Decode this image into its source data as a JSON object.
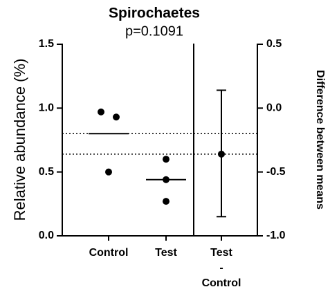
{
  "chart_data": {
    "type": "estimation",
    "title": "Spirochaetes",
    "subtitle": "p=0.1091",
    "ylabel": "Relative abundance (%)",
    "y2label": "Difference between means",
    "categories": [
      "Control",
      "Test",
      "Test - Control"
    ],
    "series": [
      {
        "values": [
          0.97,
          0.93,
          0.5
        ],
        "mean": 0.8
      },
      {
        "values": [
          0.6,
          0.44,
          0.27
        ],
        "mean": 0.44
      }
    ],
    "difference": {
      "value": -0.36,
      "ci": [
        -0.85,
        0.14
      ],
      "axis": "y2"
    },
    "color": "#000000",
    "ylim": [
      0,
      1.5
    ],
    "yticks": [
      {
        "value": 0,
        "label": "0.0"
      },
      0.5,
      {
        "value": 1,
        "label": "1.0"
      },
      1.5
    ],
    "y2lim": [
      -1,
      0.5
    ],
    "y2ticks": [
      {
        "value": -1,
        "label": "-1.0"
      },
      -0.5,
      {
        "value": 0,
        "label": "0.0"
      },
      0.5
    ]
  }
}
